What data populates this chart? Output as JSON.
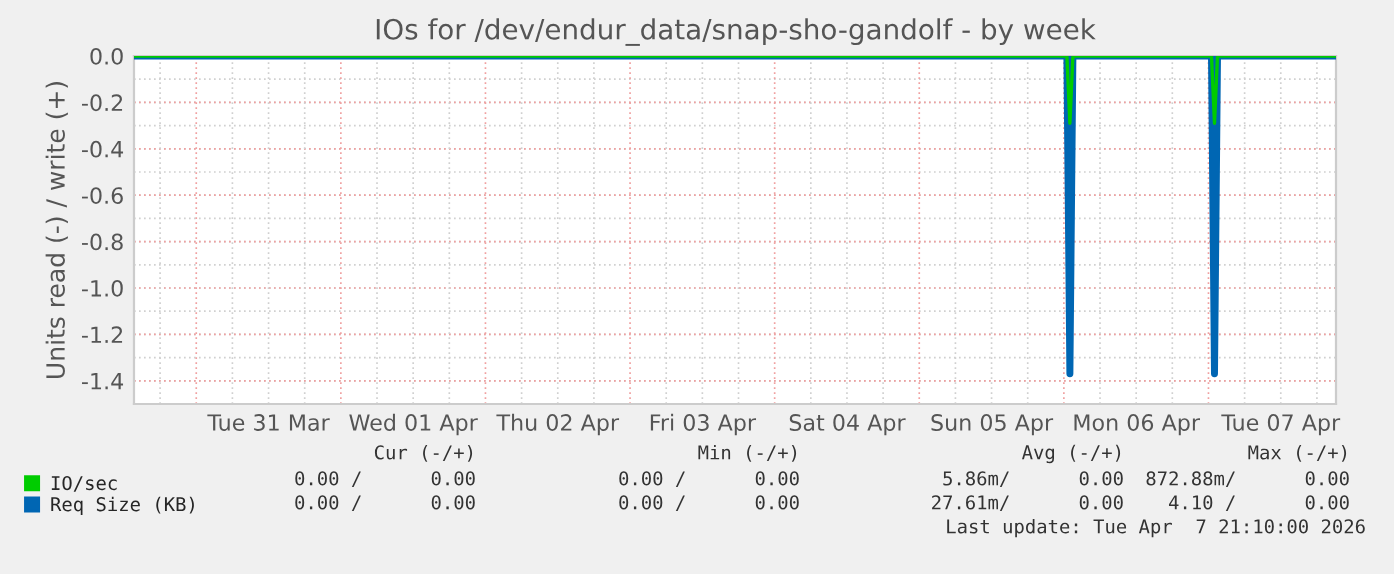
{
  "chart_data": {
    "type": "line",
    "title": "IOs for /dev/endur_data/snap-sho-gandolf - by week",
    "ylabel": "Units read (-) / write (+)",
    "xlim": [
      "2026-03-30T13:40",
      "2026-04-07T21:10"
    ],
    "ylim": [
      -1.5,
      0.0
    ],
    "yticks": [
      {
        "value": -1.4,
        "label": "-1.4"
      },
      {
        "value": -1.2,
        "label": "-1.2"
      },
      {
        "value": -1.0,
        "label": "-1.0"
      },
      {
        "value": -0.8,
        "label": "-0.8"
      },
      {
        "value": -0.6,
        "label": "-0.6"
      },
      {
        "value": -0.4,
        "label": "-0.4"
      },
      {
        "value": -0.2,
        "label": "-0.2"
      },
      {
        "value": 0.0,
        "label": "0.0"
      }
    ],
    "xticks": [
      {
        "value": "2026-03-31T12:00",
        "label": "Tue 31 Mar"
      },
      {
        "value": "2026-04-01T12:00",
        "label": "Wed 01 Apr"
      },
      {
        "value": "2026-04-02T12:00",
        "label": "Thu 02 Apr"
      },
      {
        "value": "2026-04-03T12:00",
        "label": "Fri 03 Apr"
      },
      {
        "value": "2026-04-04T12:00",
        "label": "Sat 04 Apr"
      },
      {
        "value": "2026-04-05T12:00",
        "label": "Sun 05 Apr"
      },
      {
        "value": "2026-04-06T12:00",
        "label": "Mon 06 Apr"
      },
      {
        "value": "2026-04-07T12:00",
        "label": "Tue 07 Apr"
      }
    ],
    "grid": true,
    "legend": "bottom left",
    "series": [
      {
        "name": "IO/sec",
        "color": "#00cc00",
        "x": [
          "2026-03-30T13:40",
          "2026-04-06T00:30",
          "2026-04-06T01:00",
          "2026-04-06T01:30",
          "2026-04-07T00:30",
          "2026-04-07T01:00",
          "2026-04-07T01:30",
          "2026-04-07T21:10"
        ],
        "values": [
          0,
          0,
          -0.29,
          0,
          0,
          -0.29,
          0,
          0
        ]
      },
      {
        "name": "Req Size (KB)",
        "color": "#0066b3",
        "x": [
          "2026-03-30T13:40",
          "2026-04-06T00:30",
          "2026-04-06T01:00",
          "2026-04-06T01:30",
          "2026-04-07T00:30",
          "2026-04-07T01:00",
          "2026-04-07T01:30",
          "2026-04-07T21:10"
        ],
        "values": [
          0,
          0,
          -1.37,
          0,
          0,
          -1.37,
          0,
          0
        ]
      }
    ],
    "annotations": [
      "Cur (-/+)",
      "Min (-/+)",
      "Avg (-/+)",
      "Max (-/+)",
      "0.00 /      0.00",
      "0.00 /      0.00",
      "5.86m/      0.00",
      "872.88m/      0.00",
      "0.00 /      0.00",
      "0.00 /      0.00",
      "27.61m/      0.00",
      "4.10 /      0.00",
      "Last update: Tue Apr  7 21:10:00 2026"
    ]
  }
}
